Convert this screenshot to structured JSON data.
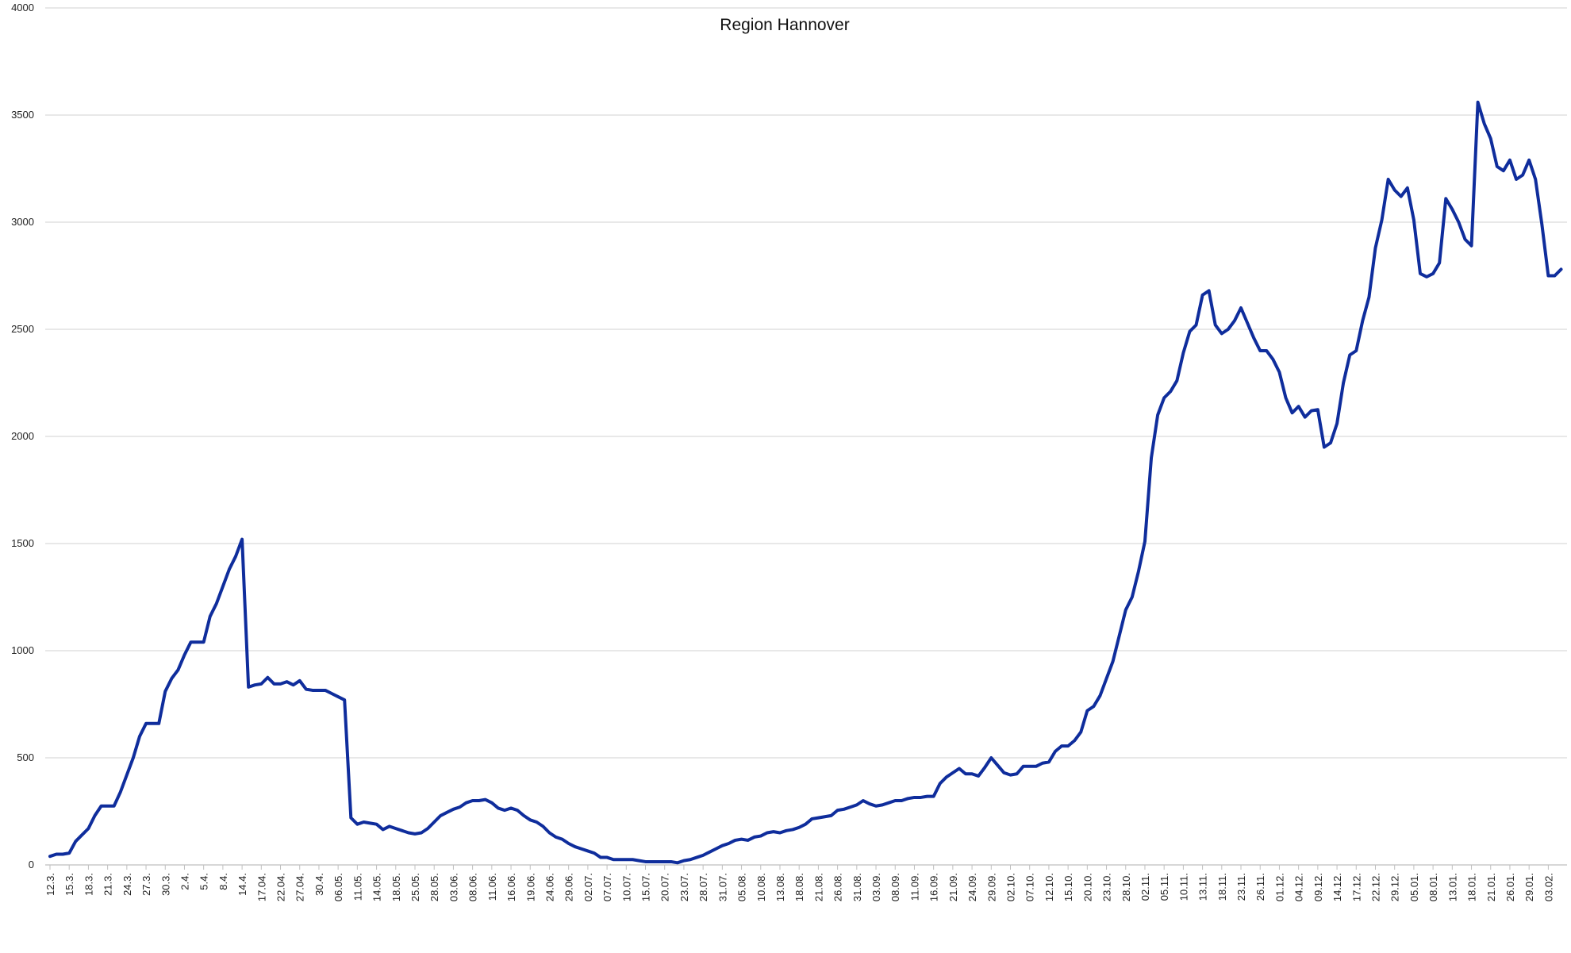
{
  "chart_data": {
    "type": "line",
    "title": "Region Hannover",
    "categories": [
      "12.3.",
      null,
      null,
      "15.3.",
      null,
      null,
      "18.3.",
      null,
      null,
      "21.3.",
      null,
      null,
      "24.3.",
      null,
      null,
      "27.3.",
      null,
      null,
      "30.3.",
      null,
      null,
      "2.4.",
      null,
      null,
      "5.4.",
      null,
      null,
      "8.4.",
      null,
      null,
      "14.4.",
      null,
      null,
      "17.04.",
      null,
      null,
      "22.04.",
      null,
      null,
      "27.04.",
      null,
      null,
      "30.4.",
      null,
      null,
      "06.05.",
      null,
      null,
      "11.05.",
      null,
      null,
      "14.05.",
      null,
      null,
      "18.05.",
      null,
      null,
      "25.05.",
      null,
      null,
      "28.05.",
      null,
      null,
      "03.06.",
      null,
      null,
      "08.06.",
      null,
      null,
      "11.06.",
      null,
      null,
      "16.06.",
      null,
      null,
      "19.06.",
      null,
      null,
      "24.06.",
      null,
      null,
      "29.06.",
      null,
      null,
      "02.07.",
      null,
      null,
      "07.07.",
      null,
      null,
      "10.07.",
      null,
      null,
      "15.07.",
      null,
      null,
      "20.07.",
      null,
      null,
      "23.07.",
      null,
      null,
      "28.07.",
      null,
      null,
      "31.07.",
      null,
      null,
      "05.08.",
      null,
      null,
      "10.08.",
      null,
      null,
      "13.08.",
      null,
      null,
      "18.08.",
      null,
      null,
      "21.08.",
      null,
      null,
      "26.08.",
      null,
      null,
      "31.08.",
      null,
      null,
      "03.09.",
      null,
      null,
      "08.09.",
      null,
      null,
      "11.09.",
      null,
      null,
      "16.09.",
      null,
      null,
      "21.09.",
      null,
      null,
      "24.09.",
      null,
      null,
      "29.09.",
      null,
      null,
      "02.10.",
      null,
      null,
      "07.10.",
      null,
      null,
      "12.10.",
      null,
      null,
      "15.10.",
      null,
      null,
      "20.10.",
      null,
      null,
      "23.10.",
      null,
      null,
      "28.10.",
      null,
      null,
      "02.11.",
      null,
      null,
      "05.11.",
      null,
      null,
      "10.11.",
      null,
      null,
      "13.11.",
      null,
      null,
      "18.11.",
      null,
      null,
      "23.11.",
      null,
      null,
      "26.11.",
      null,
      null,
      "01.12.",
      null,
      null,
      "04.12.",
      null,
      null,
      "09.12.",
      null,
      null,
      "14.12.",
      null,
      null,
      "17.12.",
      null,
      null,
      "22.12.",
      null,
      null,
      "29.12.",
      null,
      null,
      "05.01.",
      null,
      null,
      "08.01.",
      null,
      null,
      "13.01.",
      null,
      null,
      "18.01.",
      null,
      null,
      "21.01.",
      null,
      null,
      "26.01.",
      null,
      null,
      "29.01.",
      null,
      null,
      "03.02.",
      null,
      null
    ],
    "values": [
      40,
      50,
      50,
      55,
      110,
      140,
      170,
      230,
      275,
      275,
      275,
      340,
      420,
      500,
      600,
      660,
      660,
      660,
      810,
      870,
      910,
      980,
      1040,
      1040,
      1040,
      1160,
      1220,
      1300,
      1380,
      1440,
      1520,
      830,
      840,
      845,
      875,
      845,
      845,
      855,
      840,
      860,
      820,
      815,
      815,
      815,
      800,
      785,
      770,
      220,
      190,
      200,
      195,
      190,
      165,
      180,
      170,
      160,
      150,
      145,
      150,
      170,
      200,
      230,
      245,
      260,
      270,
      290,
      300,
      300,
      305,
      290,
      265,
      255,
      265,
      255,
      230,
      210,
      200,
      180,
      150,
      130,
      120,
      100,
      85,
      75,
      65,
      55,
      35,
      35,
      25,
      25,
      25,
      25,
      20,
      15,
      15,
      15,
      15,
      15,
      10,
      20,
      25,
      35,
      45,
      60,
      75,
      90,
      100,
      115,
      120,
      115,
      130,
      135,
      150,
      155,
      150,
      160,
      165,
      175,
      190,
      215,
      220,
      225,
      230,
      255,
      260,
      270,
      280,
      300,
      285,
      275,
      280,
      290,
      300,
      300,
      310,
      315,
      315,
      320,
      320,
      380,
      410,
      430,
      450,
      425,
      425,
      415,
      455,
      500,
      465,
      430,
      420,
      425,
      460,
      460,
      460,
      475,
      480,
      530,
      555,
      555,
      580,
      620,
      720,
      740,
      790,
      870,
      950,
      1070,
      1190,
      1250,
      1370,
      1510,
      1900,
      2100,
      2180,
      2210,
      2260,
      2390,
      2490,
      2520,
      2660,
      2680,
      2520,
      2480,
      2500,
      2540,
      2600,
      2530,
      2460,
      2400,
      2400,
      2360,
      2300,
      2180,
      2110,
      2140,
      2090,
      2120,
      2125,
      1950,
      1970,
      2060,
      2250,
      2380,
      2400,
      2540,
      2650,
      2880,
      3010,
      3200,
      3150,
      3120,
      3160,
      3010,
      2760,
      2745,
      2760,
      2810,
      3110,
      3060,
      3000,
      2920,
      2890,
      3560,
      3460,
      3390,
      3260,
      3240,
      3290,
      3200,
      3220,
      3290,
      3200,
      2990,
      2750,
      2750,
      2780
    ],
    "color": "#0f2d9c",
    "ylim": [
      0,
      4000
    ],
    "yticks": [
      0,
      500,
      1000,
      1500,
      2000,
      2500,
      3000,
      3500,
      4000
    ],
    "grid": true
  }
}
